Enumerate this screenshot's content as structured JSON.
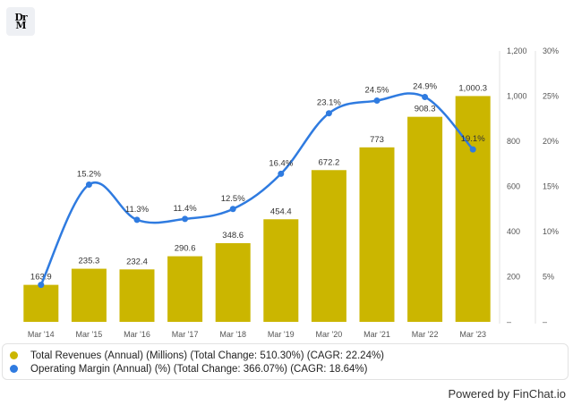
{
  "logo": {
    "text_top": "Dr",
    "text_bottom": "M"
  },
  "powered_by": "Powered by FinChat.io",
  "chart_data": {
    "type": "bar",
    "title": "",
    "categories": [
      "Mar '14",
      "Mar '15",
      "Mar '16",
      "Mar '17",
      "Mar '18",
      "Mar '19",
      "Mar '20",
      "Mar '21",
      "Mar '22",
      "Mar '23"
    ],
    "series": [
      {
        "name": "Total Revenues (Annual) (Millions) (Total Change: 510.30%) (CAGR: 22.24%)",
        "type": "bar",
        "axis": "left",
        "color": "#cbb600",
        "values": [
          163.9,
          235.3,
          232.4,
          290.6,
          348.6,
          454.4,
          672.2,
          773,
          908.3,
          1000.3
        ],
        "labels": [
          "163.9",
          "235.3",
          "232.4",
          "290.6",
          "348.6",
          "454.4",
          "672.2",
          "773",
          "908.3",
          "1,000.3"
        ]
      },
      {
        "name": "Operating Margin (Annual) (%) (Total Change: 366.07%) (CAGR: 18.64%)",
        "type": "line",
        "axis": "right",
        "color": "#2f7be0",
        "values": [
          4.1,
          15.2,
          11.3,
          11.4,
          12.5,
          16.4,
          23.1,
          24.5,
          24.9,
          19.1
        ],
        "labels": [
          "",
          "15.2%",
          "11.3%",
          "11.4%",
          "12.5%",
          "16.4%",
          "23.1%",
          "24.5%",
          "24.9%",
          "19.1%"
        ]
      }
    ],
    "y_left": {
      "min": 0,
      "max": 1200,
      "ticks": [
        "–",
        "200",
        "400",
        "600",
        "800",
        "1,000",
        "1,200"
      ]
    },
    "y_right": {
      "min": 0,
      "max": 30,
      "ticks": [
        "–",
        "5%",
        "10%",
        "15%",
        "20%",
        "25%",
        "30%"
      ]
    },
    "grid": false,
    "legend_position": "bottom"
  }
}
